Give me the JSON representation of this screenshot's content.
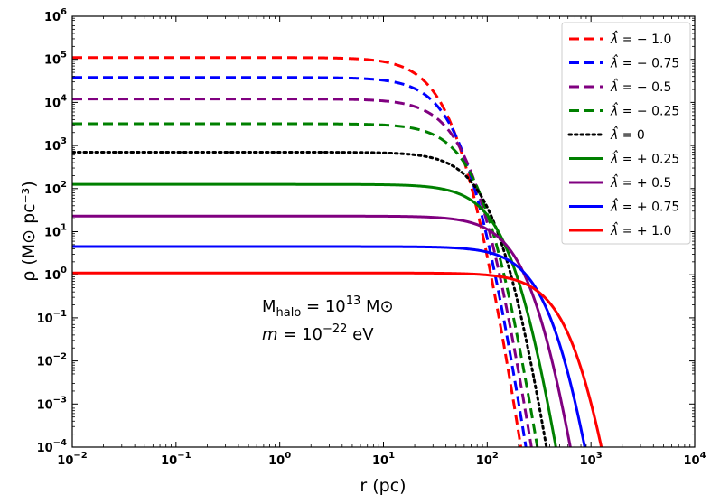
{
  "chart_data": {
    "type": "line",
    "title": "",
    "xlabel": "r (pc)",
    "ylabel": "ρ (M⊙ pc⁻³)",
    "xscale": "log",
    "yscale": "log",
    "xlim": [
      0.01,
      10000
    ],
    "ylim": [
      0.0001,
      1000000
    ],
    "x_tick_exponents": [
      -2,
      -1,
      0,
      1,
      2,
      3,
      4
    ],
    "y_tick_exponents": [
      -4,
      -3,
      -2,
      -1,
      0,
      1,
      2,
      3,
      4,
      5,
      6
    ],
    "tick_base": "10",
    "legend_position": "top-right",
    "annotations": [
      {
        "name": "halo-mass",
        "prefix": "M",
        "sub": "halo",
        "mid": " = 10",
        "sup": "13",
        "suffix": " M⊙"
      },
      {
        "name": "particle-mass",
        "prefix": "m",
        "mid": " = 10",
        "sup": "−22",
        "suffix": " eV"
      }
    ],
    "series": [
      {
        "name": "λ̂ = −1.0",
        "label_symbol": "λ̂",
        "label_value": " = − 1.0",
        "color": "#ff0000",
        "style": "dashed",
        "central_density": 110000,
        "core_radius": 60,
        "r_cut": 320
      },
      {
        "name": "λ̂ = −0.75",
        "label_symbol": "λ̂",
        "label_value": " = − 0.75",
        "color": "#0000ff",
        "style": "dashed",
        "central_density": 38000,
        "core_radius": 72,
        "r_cut": 390
      },
      {
        "name": "λ̂ = −0.5",
        "label_symbol": "λ̂",
        "label_value": " = − 0.5",
        "color": "#800080",
        "style": "dashed",
        "central_density": 12000,
        "core_radius": 88,
        "r_cut": 470
      },
      {
        "name": "λ̂ = −0.25",
        "label_symbol": "λ̂",
        "label_value": " = − 0.25",
        "color": "#008000",
        "style": "dashed",
        "central_density": 3200,
        "core_radius": 110,
        "r_cut": 600
      },
      {
        "name": "λ̂ = 0",
        "label_symbol": "λ̂",
        "label_value": " = 0",
        "color": "#000000",
        "style": "dotted",
        "central_density": 700,
        "core_radius": 150,
        "r_cut": 820
      },
      {
        "name": "λ̂ = +0.25",
        "label_symbol": "λ̂",
        "label_value": " = + 0.25",
        "color": "#008000",
        "style": "solid",
        "central_density": 125,
        "core_radius": 210,
        "r_cut": 1100
      },
      {
        "name": "λ̂ = +0.5",
        "label_symbol": "λ̂",
        "label_value": " = + 0.5",
        "color": "#800080",
        "style": "solid",
        "central_density": 23,
        "core_radius": 330,
        "r_cut": 1400
      },
      {
        "name": "λ̂ = +0.75",
        "label_symbol": "λ̂",
        "label_value": " = + 0.75",
        "color": "#0000ff",
        "style": "solid",
        "central_density": 4.5,
        "core_radius": 520,
        "r_cut": 1800
      },
      {
        "name": "λ̂ = +1.0",
        "label_symbol": "λ̂",
        "label_value": " = + 1.0",
        "color": "#ff0000",
        "style": "solid",
        "central_density": 1.1,
        "core_radius": 850,
        "r_cut": 2600
      }
    ]
  }
}
